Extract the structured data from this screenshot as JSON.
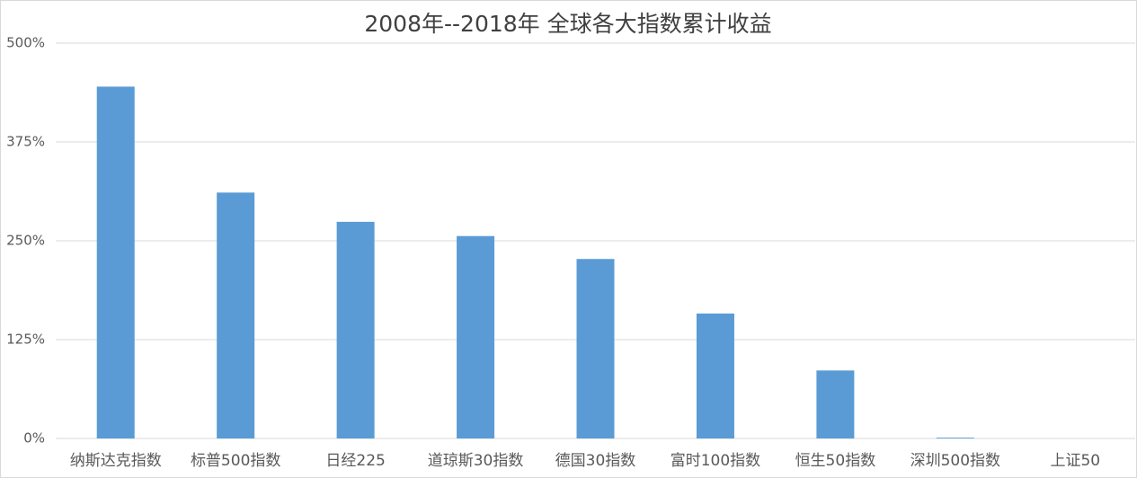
{
  "chart_data": {
    "type": "bar",
    "title": "2008年--2018年 全球各大指数累计收益",
    "categories": [
      "纳斯达克指数",
      "标普500指数",
      "日经225",
      "道琼斯30指数",
      "德国30指数",
      "富时100指数",
      "恒生50指数",
      "深圳500指数",
      "上证50"
    ],
    "values": [
      445,
      311,
      274,
      256,
      227,
      158,
      86,
      1,
      0
    ],
    "color": "#5b9bd5",
    "ylim": [
      0,
      500
    ],
    "yticks": [
      {
        "value": 0,
        "label": "0%"
      },
      {
        "value": 125,
        "label": "125%"
      },
      {
        "value": 250,
        "label": "250%"
      },
      {
        "value": 375,
        "label": "375%"
      },
      {
        "value": 500,
        "label": "500%"
      }
    ],
    "grid": true
  }
}
